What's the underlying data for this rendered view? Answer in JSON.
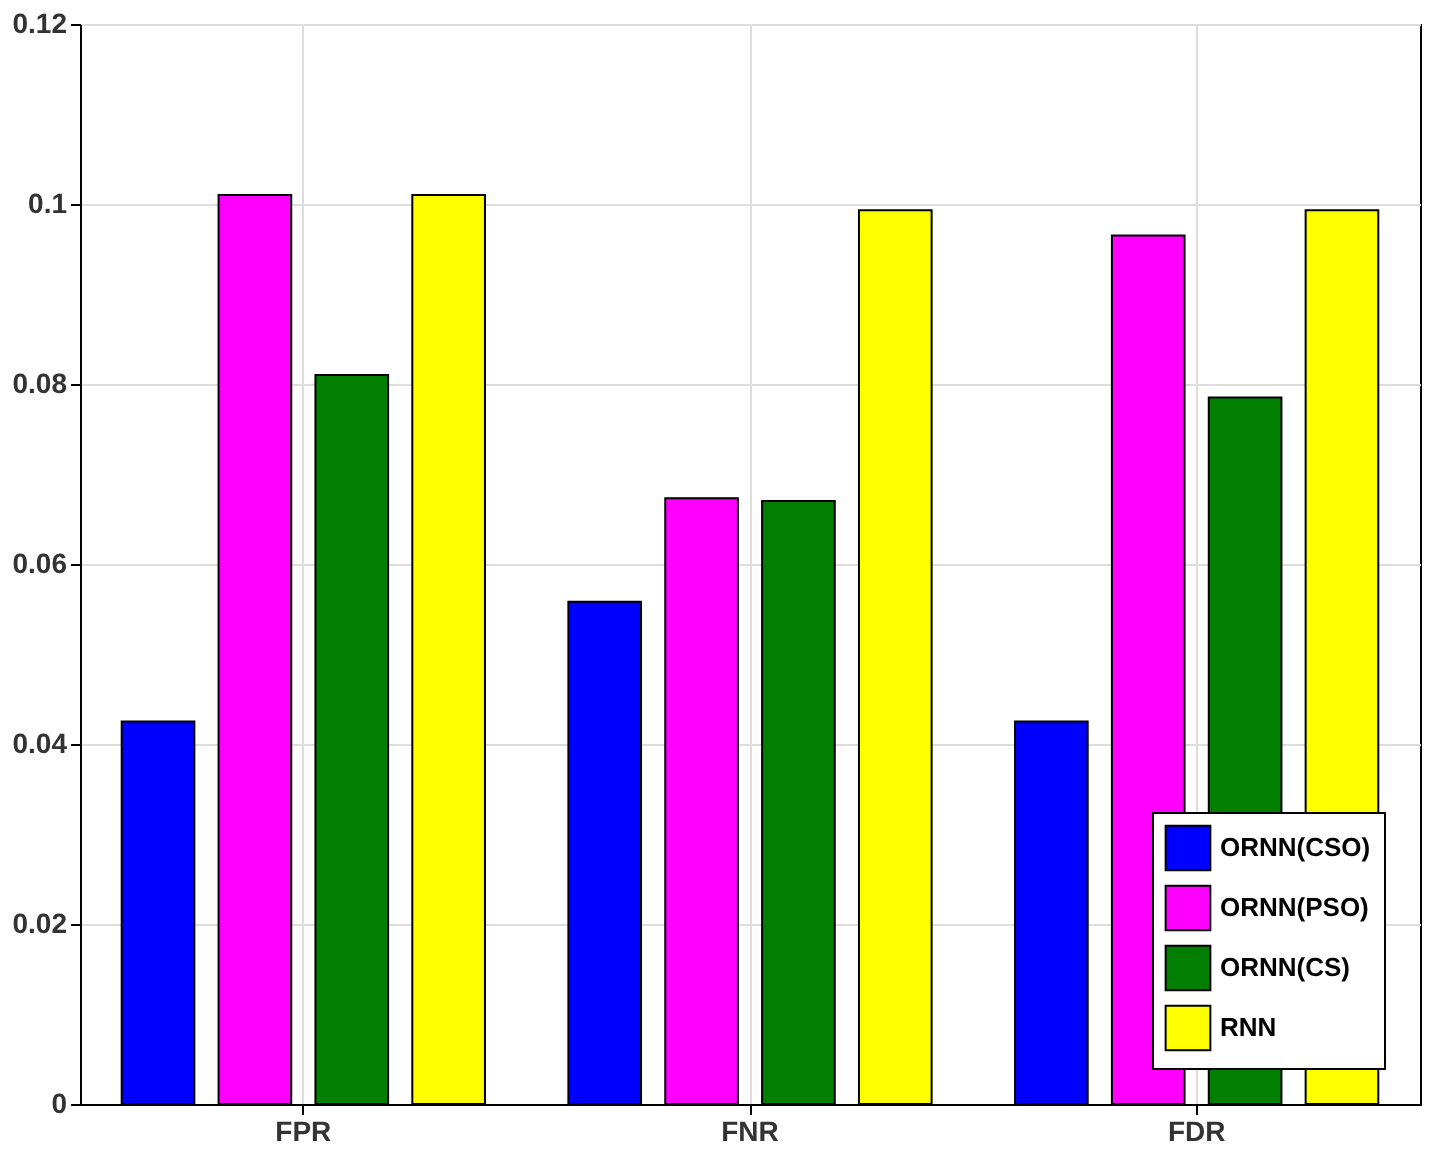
{
  "chart_data": {
    "type": "bar",
    "categories": [
      "FPR",
      "FNR",
      "FDR"
    ],
    "series": [
      {
        "name": "ORNN(CSO)",
        "color": "#0000ff",
        "values": [
          0.0425,
          0.0558,
          0.0425
        ]
      },
      {
        "name": "ORNN(PSO)",
        "color": "#ff00ff",
        "values": [
          0.101,
          0.0673,
          0.0965
        ]
      },
      {
        "name": "ORNN(CS)",
        "color": "#007f00",
        "values": [
          0.081,
          0.067,
          0.0785
        ]
      },
      {
        "name": "RNN",
        "color": "#ffff00",
        "values": [
          0.101,
          0.0993,
          0.0993
        ]
      }
    ],
    "ylim": [
      0,
      0.12
    ],
    "yticks": [
      0,
      0.02,
      0.04,
      0.06,
      0.08,
      0.1,
      0.12
    ],
    "grid": true,
    "legend": "bottom right"
  }
}
